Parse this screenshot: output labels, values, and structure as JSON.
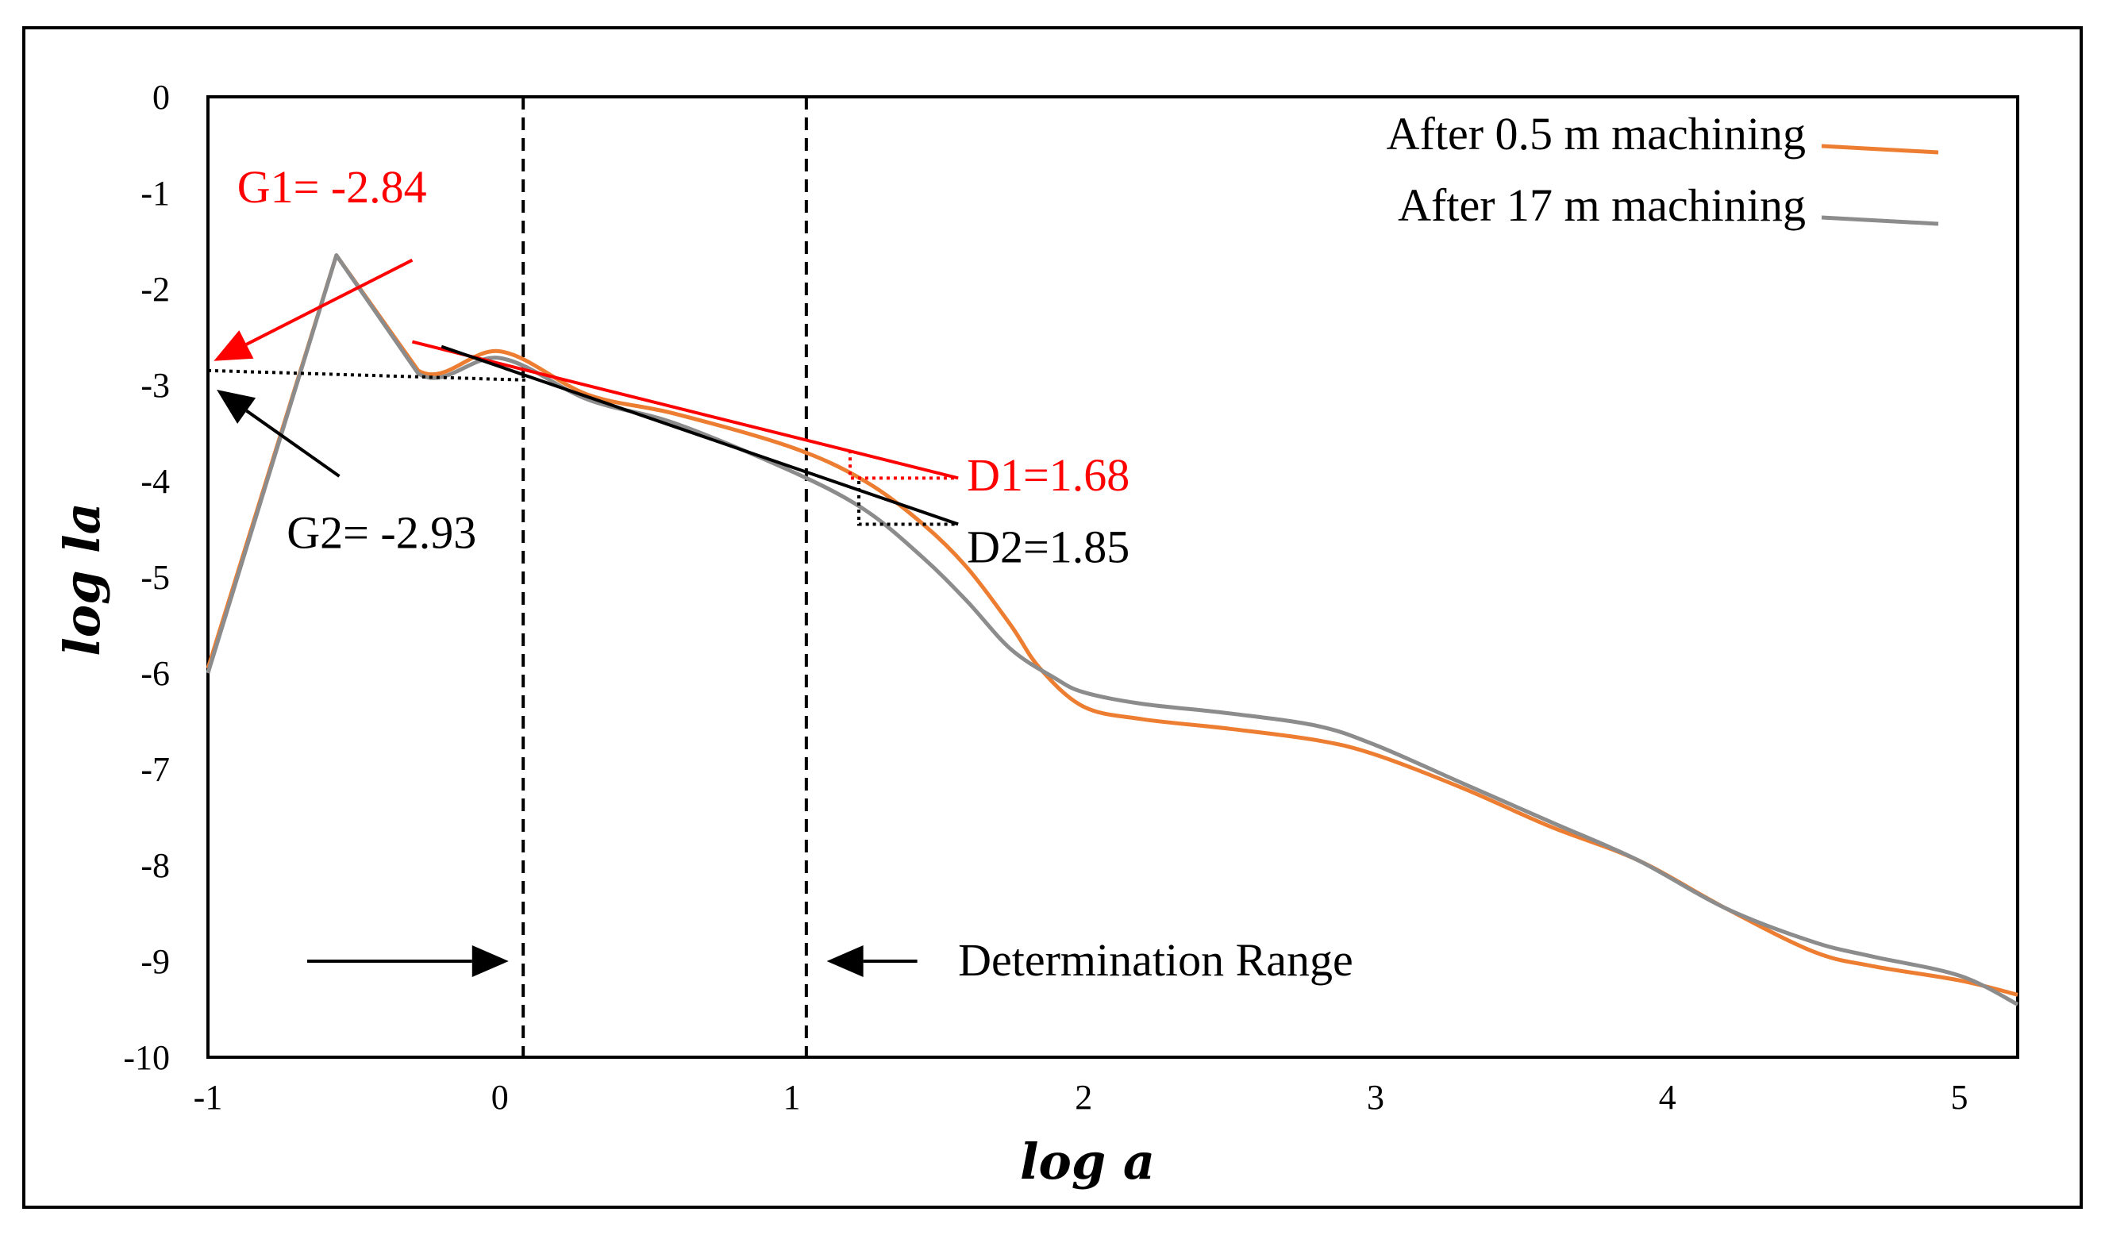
{
  "chart_data": {
    "type": "line",
    "title": "",
    "xlabel": "log a",
    "ylabel": "log la",
    "xlim": [
      -1,
      5.2
    ],
    "ylim": [
      -10,
      0
    ],
    "x_ticks": [
      "-1",
      "0",
      "1",
      "2",
      "3",
      "4",
      "5"
    ],
    "y_ticks": [
      "0",
      "-1",
      "-2",
      "-3",
      "-4",
      "-5",
      "-6",
      "-7",
      "-8",
      "-9",
      "-10"
    ],
    "grid": false,
    "legend_position": "top-right",
    "series": [
      {
        "name": "After 0.5 m machining",
        "color": "#ED7D31",
        "x": [
          -1,
          -0.56,
          -0.28,
          0,
          0.3,
          0.6,
          1.0,
          1.25,
          1.45,
          1.6,
          1.75,
          1.85,
          2.0,
          2.2,
          2.5,
          2.8,
          3.0,
          3.3,
          3.6,
          3.9,
          4.2,
          4.5,
          4.7,
          5.0,
          5.2
        ],
        "y": [
          -5.95,
          -1.65,
          -2.85,
          -2.65,
          -3.1,
          -3.3,
          -3.65,
          -4.0,
          -4.45,
          -4.9,
          -5.5,
          -5.95,
          -6.35,
          -6.48,
          -6.58,
          -6.7,
          -6.85,
          -7.2,
          -7.6,
          -7.95,
          -8.45,
          -8.9,
          -9.05,
          -9.2,
          -9.35
        ]
      },
      {
        "name": "After 17 m machining",
        "color": "#8C8C8C",
        "x": [
          -1,
          -0.56,
          -0.28,
          0,
          0.3,
          0.6,
          1.0,
          1.25,
          1.45,
          1.6,
          1.75,
          1.9,
          2.0,
          2.2,
          2.5,
          2.8,
          3.0,
          3.3,
          3.6,
          3.9,
          4.2,
          4.5,
          4.7,
          5.0,
          5.2
        ],
        "y": [
          -6.0,
          -1.65,
          -2.88,
          -2.72,
          -3.15,
          -3.4,
          -3.9,
          -4.3,
          -4.8,
          -5.25,
          -5.75,
          -6.05,
          -6.2,
          -6.32,
          -6.42,
          -6.55,
          -6.75,
          -7.15,
          -7.55,
          -7.95,
          -8.45,
          -8.8,
          -8.95,
          -9.15,
          -9.45
        ]
      }
    ],
    "fit_lines": [
      {
        "name": "D1 fit",
        "color": "#FF0000",
        "style": "solid",
        "x": [
          -0.3,
          1.57
        ],
        "y": [
          -2.55,
          -3.97
        ]
      },
      {
        "name": "D2 fit",
        "color": "#000000",
        "style": "solid",
        "x": [
          -0.2,
          1.57
        ],
        "y": [
          -2.6,
          -4.45
        ]
      },
      {
        "name": "G2 fit",
        "color": "#000000",
        "style": "dotted",
        "x": [
          -1,
          0.1
        ],
        "y": [
          -2.85,
          -2.95
        ]
      }
    ],
    "slope_triangles": [
      {
        "color": "#FF0000",
        "x": [
          1.2,
          1.2,
          1.57
        ],
        "y": [
          -3.68,
          -3.97,
          -3.97
        ]
      },
      {
        "color": "#000000",
        "x": [
          1.23,
          1.23,
          1.57
        ],
        "y": [
          -4.0,
          -4.45,
          -4.45
        ]
      }
    ],
    "vlines": [
      {
        "x": 0.08,
        "style": "dashed",
        "color": "#000000"
      },
      {
        "x": 1.05,
        "style": "dashed",
        "color": "#000000"
      }
    ],
    "arrows": [
      {
        "from": [
          -0.3,
          -1.7
        ],
        "to": [
          -0.98,
          -2.75
        ],
        "color": "#FF0000"
      },
      {
        "from": [
          -0.55,
          -3.95
        ],
        "to": [
          -0.97,
          -3.05
        ],
        "color": "#000000"
      },
      {
        "from": [
          -0.66,
          -9.0
        ],
        "to": [
          0.03,
          -9.0
        ],
        "color": "#000000"
      },
      {
        "from": [
          1.43,
          -9.0
        ],
        "to": [
          1.12,
          -9.0
        ],
        "color": "#000000"
      }
    ],
    "annotations": [
      {
        "text": "G1= -2.84",
        "color": "#FF0000",
        "x": -0.9,
        "y": -0.95,
        "anchor": "start"
      },
      {
        "text": "G2= -2.93",
        "color": "#000000",
        "x": -0.73,
        "y": -4.55,
        "anchor": "start"
      },
      {
        "text": "D1=1.68",
        "color": "#FF0000",
        "x": 1.6,
        "y": -3.95,
        "anchor": "start"
      },
      {
        "text": "D2=1.85",
        "color": "#000000",
        "x": 1.6,
        "y": -4.7,
        "anchor": "start"
      },
      {
        "text": "Determination Range",
        "color": "#000000",
        "x": 1.57,
        "y": -9.0,
        "anchor": "start"
      }
    ]
  }
}
